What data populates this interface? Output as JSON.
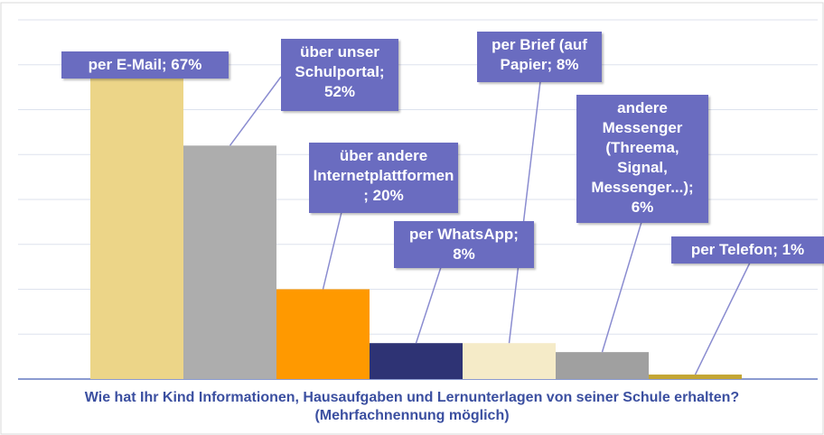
{
  "chart_data": {
    "type": "bar",
    "title": "Wie hat Ihr Kind Informationen, Hausaufgaben und Lernunterlagen von seiner Schule erhalten?",
    "subtitle": "(Mehrfachnennung möglich)",
    "values": [
      67,
      52,
      20,
      8,
      8,
      6,
      1
    ],
    "value_labels": [
      "per E-Mail; 67%",
      "über unser Schulportal; 52%",
      "über andere Internetplattformen; 20%",
      "per WhatsApp; 8%",
      "per Brief (auf Papier; 8%",
      "andere Messenger (Threema, Signal, Messenger...); 6%",
      "per Telefon; 1%"
    ],
    "colors": [
      "#ecd588",
      "#adadad",
      "#ff9900",
      "#2e3374",
      "#f5ebc8",
      "#a0a0a0",
      "#c4a634"
    ],
    "ylim": [
      0,
      80
    ],
    "yticks": [
      0,
      10,
      20,
      30,
      40,
      50,
      60,
      70,
      80
    ],
    "grid": true
  }
}
